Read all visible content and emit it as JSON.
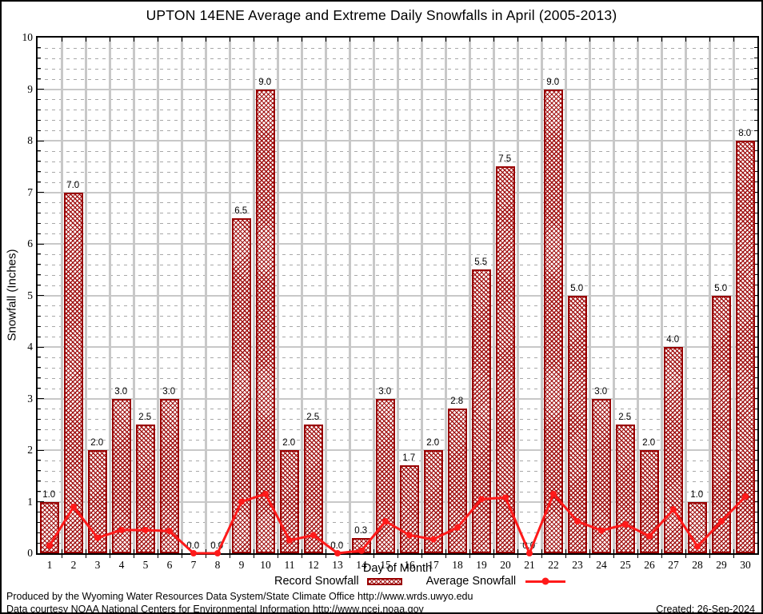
{
  "title": "UPTON 14ENE Average and Extreme Daily Snowfalls in April (2005-2013)",
  "chart_data": {
    "type": "bar",
    "categories": [
      1,
      2,
      3,
      4,
      5,
      6,
      7,
      8,
      9,
      10,
      11,
      12,
      13,
      14,
      15,
      16,
      17,
      18,
      19,
      20,
      21,
      22,
      23,
      24,
      25,
      26,
      27,
      28,
      29,
      30
    ],
    "series": [
      {
        "name": "Record Snowfall",
        "type": "bar",
        "values": [
          1.0,
          7.0,
          2.0,
          3.0,
          2.5,
          3.0,
          0.0,
          0.0,
          6.5,
          9.0,
          2.0,
          2.5,
          0.0,
          0.3,
          3.0,
          1.7,
          2.0,
          2.8,
          5.5,
          7.5,
          0.0,
          9.0,
          5.0,
          3.0,
          2.5,
          2.0,
          4.0,
          1.0,
          5.0,
          8.0
        ]
      },
      {
        "name": "Average Snowfall",
        "type": "line",
        "values": [
          0.15,
          0.9,
          0.3,
          0.45,
          0.45,
          0.43,
          0.0,
          0.0,
          1.0,
          1.15,
          0.25,
          0.35,
          0.0,
          0.05,
          0.62,
          0.35,
          0.27,
          0.5,
          1.05,
          1.08,
          0.0,
          1.15,
          0.62,
          0.44,
          0.56,
          0.33,
          0.85,
          0.13,
          0.62,
          1.1
        ]
      }
    ],
    "xlabel": "Day of Month",
    "ylabel": "Snowfall (Inches)",
    "ylim": [
      0,
      10
    ],
    "y_ticks": [
      0,
      1,
      2,
      3,
      4,
      5,
      6,
      7,
      8,
      9,
      10
    ],
    "y_major_step": 1,
    "y_minor_step": 0.2,
    "grid": true,
    "legend_position": "bottom",
    "bar_labels_shown": true
  },
  "footer": {
    "line1": "Produced by the Wyoming Water Resources Data System/State Climate Office http://www.wrds.uwyo.edu",
    "line2": "Data courtesy NOAA National Centers for Environmental Information http://www.ncei.noaa.gov",
    "created": "Created: 26-Sep-2024"
  },
  "colors": {
    "bar_border": "#990000",
    "bar_hatch": "#a01010",
    "line": "#ff1a1a",
    "grid_major": "#c8c8c8",
    "grid_minor": "#a8a8a8",
    "text": "#000000"
  }
}
